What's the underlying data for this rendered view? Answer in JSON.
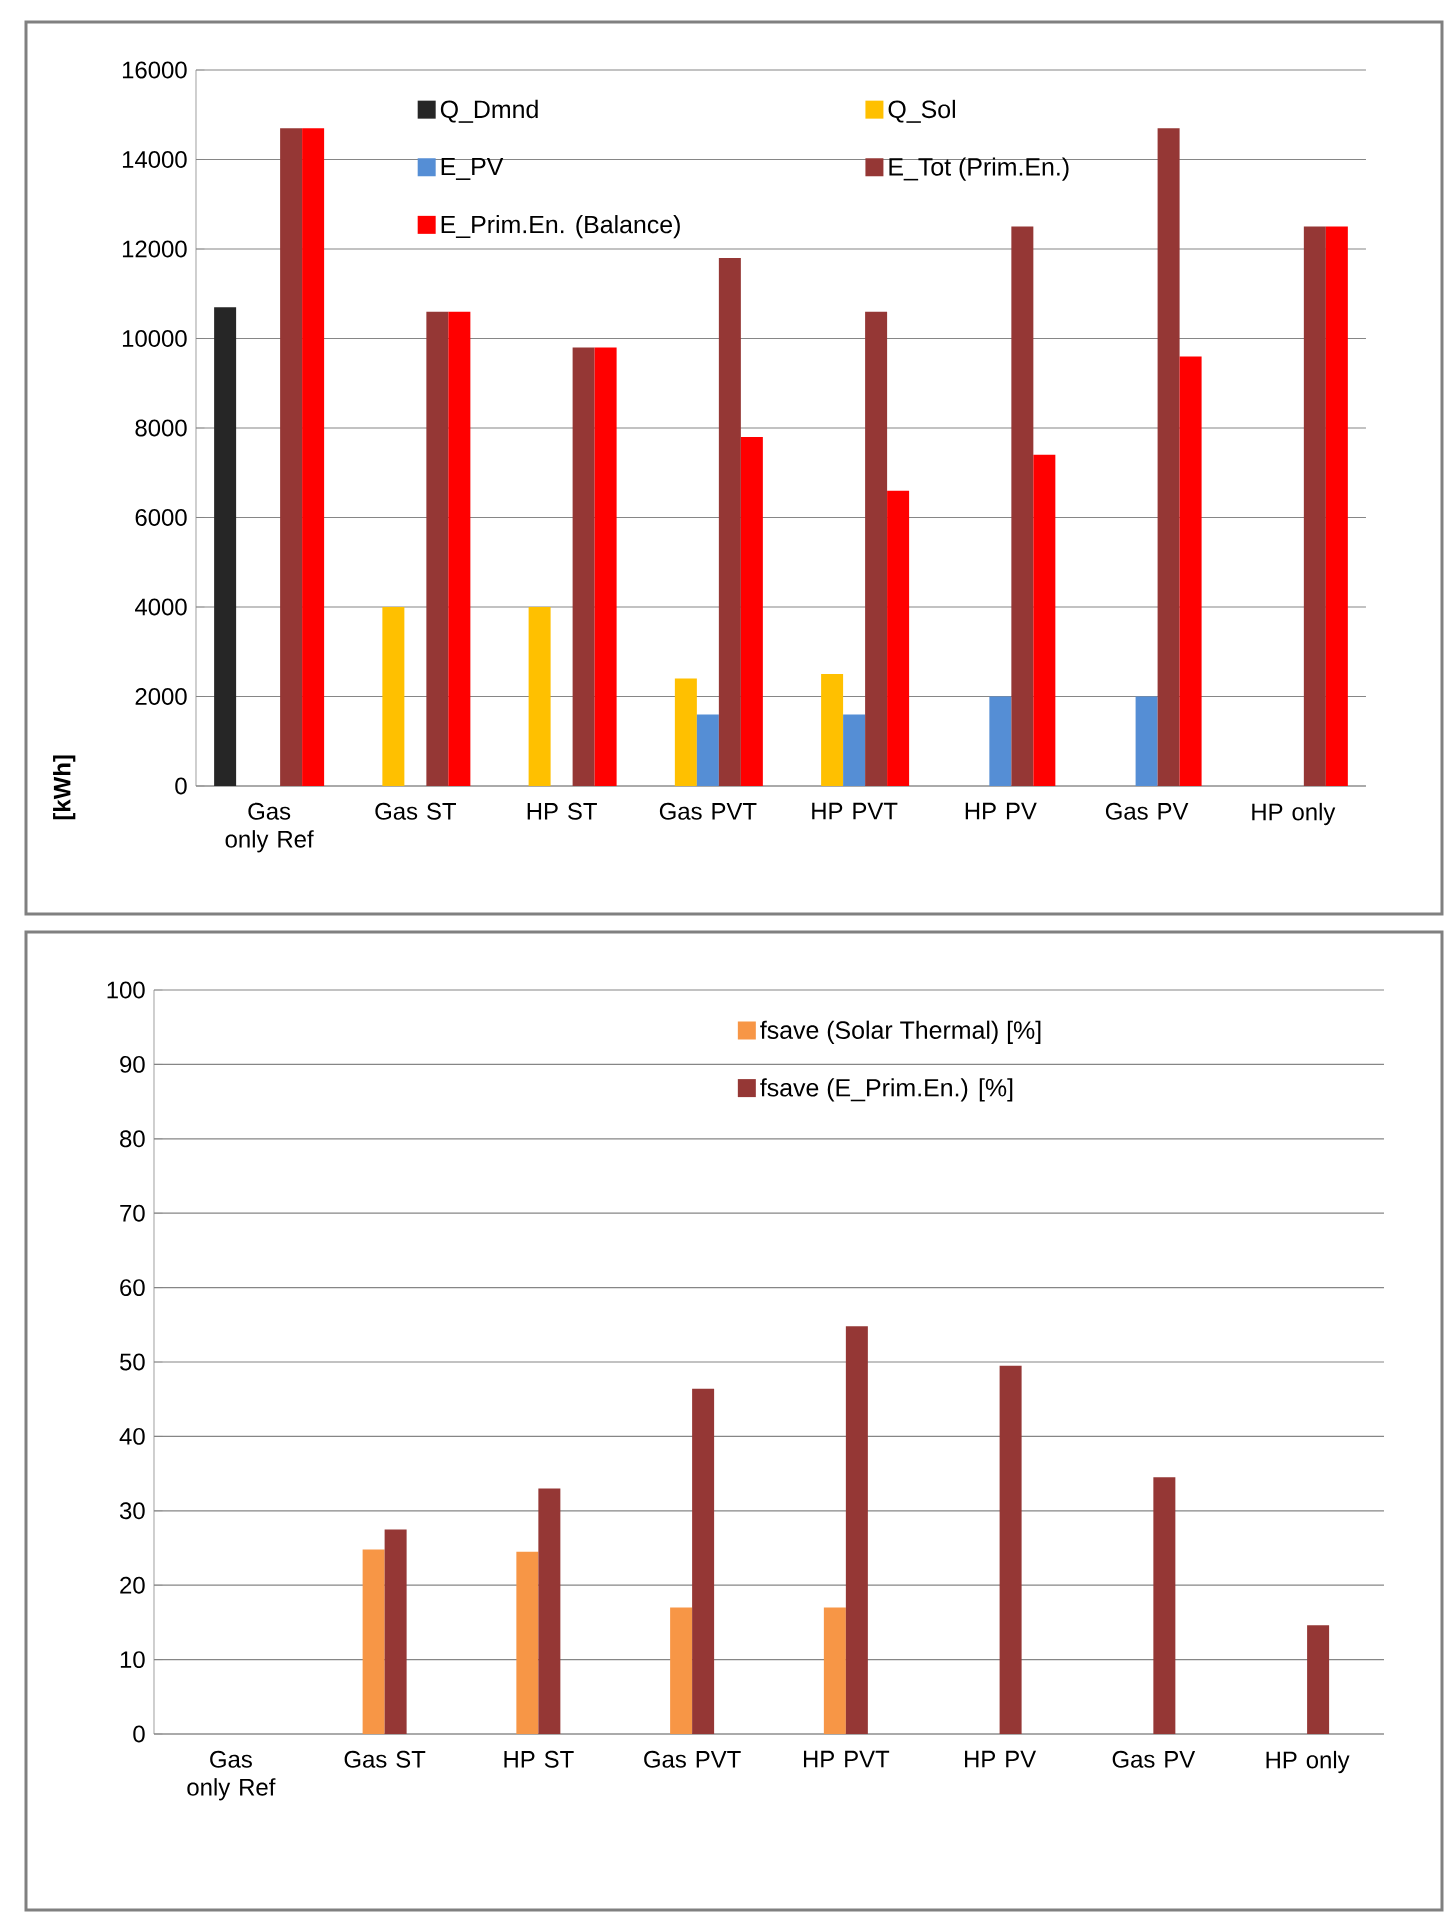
{
  "chart_data": [
    {
      "type": "bar",
      "ylabel": "[kWh]",
      "categories": [
        "Gas only Ref",
        "Gas ST",
        "HP ST",
        "Gas PVT",
        "HP PVT",
        "HP PV",
        "Gas PV",
        "HP only"
      ],
      "series": [
        {
          "name": "Q_Dmnd",
          "color": "#262626",
          "values": [
            10700,
            null,
            null,
            null,
            null,
            null,
            null,
            null
          ]
        },
        {
          "name": "Q_Sol",
          "color": "#ffc000",
          "values": [
            null,
            4000,
            4000,
            2400,
            2500,
            null,
            null,
            null
          ]
        },
        {
          "name": "E_PV",
          "color": "#558ed5",
          "values": [
            null,
            null,
            null,
            1600,
            1600,
            2000,
            2000,
            null
          ]
        },
        {
          "name": "E_Tot (Prim.En.)",
          "color": "#953735",
          "values": [
            14700,
            10600,
            9800,
            11800,
            10600,
            12500,
            14700,
            12500
          ]
        },
        {
          "name": "E_Prim.En. (Balance)",
          "color": "#ff0000",
          "values": [
            14700,
            10600,
            9800,
            7800,
            6600,
            7400,
            9600,
            12500
          ]
        }
      ],
      "ylim": [
        0,
        16000
      ],
      "yticks": [
        0,
        2000,
        4000,
        6000,
        8000,
        10000,
        12000,
        14000,
        16000
      ],
      "grid": "y",
      "legend": "top"
    },
    {
      "type": "bar",
      "categories": [
        "Gas only Ref",
        "Gas ST",
        "HP ST",
        "Gas PVT",
        "HP PVT",
        "HP PV",
        "Gas PV",
        "HP only"
      ],
      "series": [
        {
          "name": "fsave (Solar Thermal) [%]",
          "color": "#f79646",
          "values": [
            null,
            24.8,
            24.5,
            17,
            17,
            null,
            null,
            null
          ]
        },
        {
          "name": "fsave (E_Prim.En.) [%]",
          "color": "#953735",
          "values": [
            null,
            27.5,
            33,
            46.4,
            54.8,
            49.5,
            34.5,
            14.6
          ]
        }
      ],
      "ylim": [
        0,
        100
      ],
      "yticks": [
        0,
        10,
        20,
        30,
        40,
        50,
        60,
        70,
        80,
        90,
        100
      ],
      "grid": "y",
      "legend": "top"
    }
  ]
}
